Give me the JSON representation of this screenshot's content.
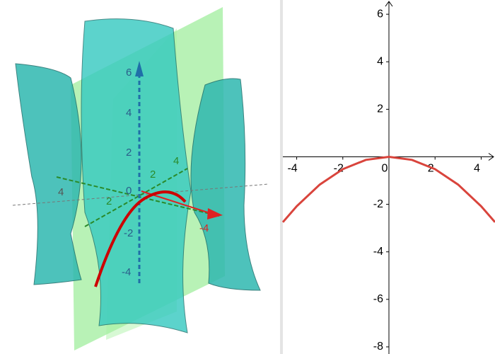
{
  "view3d": {
    "axis_labels": [
      "6",
      "4",
      "2",
      "0",
      "2",
      "4",
      "2",
      "-2",
      "-4",
      "4",
      "-4"
    ]
  },
  "graph2d": {
    "xlim": [
      -4.6,
      4.6
    ],
    "ylim": [
      -8.3,
      6.6
    ],
    "xticks": [
      -4,
      -2,
      0,
      2,
      4
    ],
    "yticks": [
      6,
      4,
      2,
      -2,
      -4,
      -6,
      -8
    ],
    "curve": {
      "color": "#d9443c",
      "x": [
        -4.6,
        -4,
        -3,
        -2,
        -1,
        0,
        1,
        2,
        3,
        4,
        4.6
      ],
      "y": [
        -2.75,
        -2.08,
        -1.17,
        -0.52,
        -0.13,
        0,
        -0.13,
        -0.52,
        -1.17,
        -2.08,
        -2.75
      ]
    }
  }
}
